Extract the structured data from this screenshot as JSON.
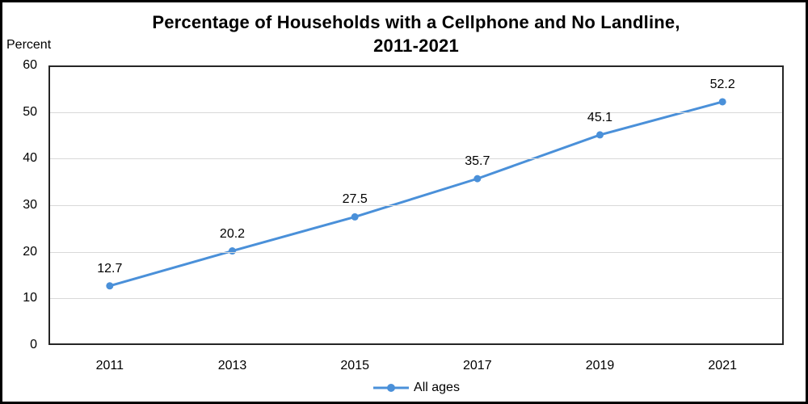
{
  "colors": {
    "series_line": "#4A90D9",
    "gridline": "#D9D9D9",
    "plot_border": "#262626",
    "frame_border": "#000000",
    "text": "#000000"
  },
  "chart_data": {
    "type": "line",
    "title": "Percentage of Households with a Cellphone and No Landline, 2011-2021",
    "title_lines": [
      "Percentage of Households with a Cellphone and No Landline,",
      "2011-2021"
    ],
    "ylabel": "Percent",
    "categories": [
      "2011",
      "2013",
      "2015",
      "2017",
      "2019",
      "2021"
    ],
    "series": [
      {
        "name": "All ages",
        "values": [
          12.7,
          20.2,
          27.5,
          35.7,
          45.1,
          52.2
        ]
      }
    ],
    "ylim": [
      0,
      60
    ],
    "yticks": [
      0,
      10,
      20,
      30,
      40,
      50,
      60
    ],
    "grid": true,
    "data_labels": true,
    "legend_position": "bottom"
  }
}
